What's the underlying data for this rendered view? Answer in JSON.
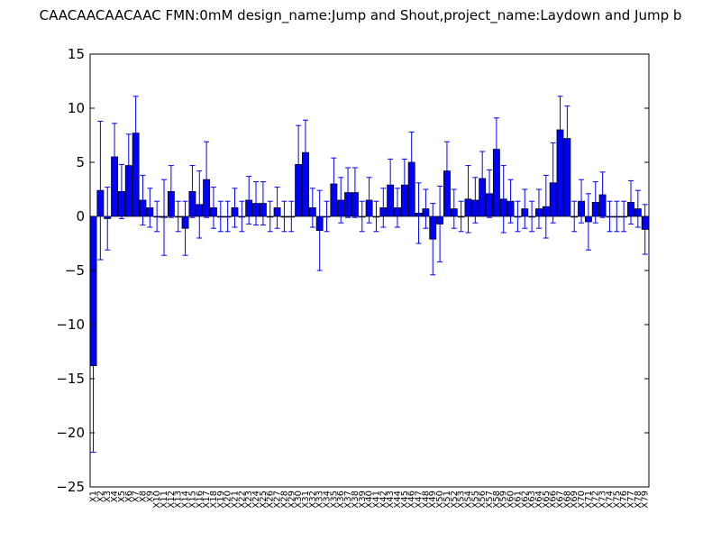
{
  "chart_data": {
    "type": "bar",
    "title": "CAACAACAACAAC  FMN:0mM  design_name:Jump and Shout,project_name:Laydown and Jump b",
    "xlabel": "",
    "ylabel": "",
    "ylim": [
      -25,
      15
    ],
    "yticks": [
      15,
      10,
      5,
      0,
      -5,
      -10,
      -15,
      -20,
      -25
    ],
    "ytick_labels": [
      "15",
      "10",
      "5",
      "0",
      "−5",
      "−10",
      "−15",
      "−20",
      "−25"
    ],
    "grid": false,
    "bar_color": "#0000ff",
    "categories": [
      "X1",
      "X2",
      "X3",
      "X4",
      "X5",
      "X6",
      "X7",
      "X8",
      "X9",
      "X10",
      "X11",
      "X12",
      "X13",
      "X14",
      "X15",
      "X16",
      "X17",
      "X18",
      "X19",
      "X20",
      "X21",
      "X22",
      "X23",
      "X24",
      "X25",
      "X26",
      "X27",
      "X28",
      "X29",
      "X30",
      "X31",
      "X32",
      "X33",
      "X34",
      "X35",
      "X36",
      "X37",
      "X38",
      "X39",
      "X40",
      "X41",
      "X42",
      "X43",
      "X44",
      "X45",
      "X46",
      "X47",
      "X48",
      "X49",
      "X50",
      "X51",
      "X52",
      "X53",
      "X54",
      "X55",
      "X56",
      "X57",
      "X58",
      "X59",
      "X60",
      "X61",
      "X62",
      "X63",
      "X64",
      "X65",
      "X66",
      "X67",
      "X68",
      "X69",
      "X70",
      "X71",
      "X72",
      "X73",
      "X74",
      "X75",
      "X76",
      "X77",
      "X78",
      "X79"
    ],
    "values": [
      -13.8,
      2.4,
      -0.2,
      5.5,
      2.3,
      4.7,
      7.7,
      1.5,
      0.8,
      0,
      -0.1,
      2.3,
      0,
      -1.1,
      2.3,
      1.1,
      3.4,
      0.8,
      0,
      0,
      0.8,
      0,
      1.5,
      1.2,
      1.2,
      0,
      0.8,
      0,
      0,
      4.8,
      5.9,
      0.8,
      -1.3,
      0,
      3.0,
      1.5,
      2.2,
      2.2,
      0,
      1.5,
      0,
      0.8,
      2.9,
      0.8,
      2.9,
      5.0,
      0.3,
      0.7,
      -2.1,
      -0.7,
      4.2,
      0.7,
      0,
      1.6,
      1.5,
      3.5,
      2.1,
      6.2,
      1.6,
      1.4,
      0,
      0.7,
      0,
      0.7,
      0.9,
      3.1,
      8.0,
      7.2,
      0,
      1.4,
      -0.5,
      1.3,
      2.0,
      0,
      0,
      0,
      1.3,
      0.7,
      -1.2
    ],
    "errors": [
      8.0,
      6.4,
      2.9,
      3.1,
      2.5,
      2.9,
      3.4,
      2.3,
      1.8,
      1.4,
      3.5,
      2.4,
      1.4,
      2.5,
      2.4,
      3.1,
      3.5,
      1.9,
      1.4,
      1.4,
      1.8,
      1.4,
      2.2,
      2.0,
      2.0,
      1.4,
      1.9,
      1.4,
      1.4,
      3.6,
      3.0,
      1.8,
      3.7,
      1.4,
      2.4,
      2.1,
      2.3,
      2.3,
      1.4,
      2.1,
      1.4,
      1.8,
      2.4,
      1.8,
      2.4,
      2.8,
      2.8,
      1.8,
      3.3,
      3.5,
      2.7,
      1.8,
      1.4,
      3.1,
      2.1,
      2.5,
      2.2,
      2.9,
      3.1,
      2.0,
      1.4,
      1.8,
      1.4,
      1.8,
      2.9,
      3.7,
      3.1,
      3.0,
      1.4,
      2.0,
      2.6,
      1.9,
      2.1,
      1.4,
      1.4,
      1.4,
      2.0,
      1.7,
      2.3
    ]
  }
}
